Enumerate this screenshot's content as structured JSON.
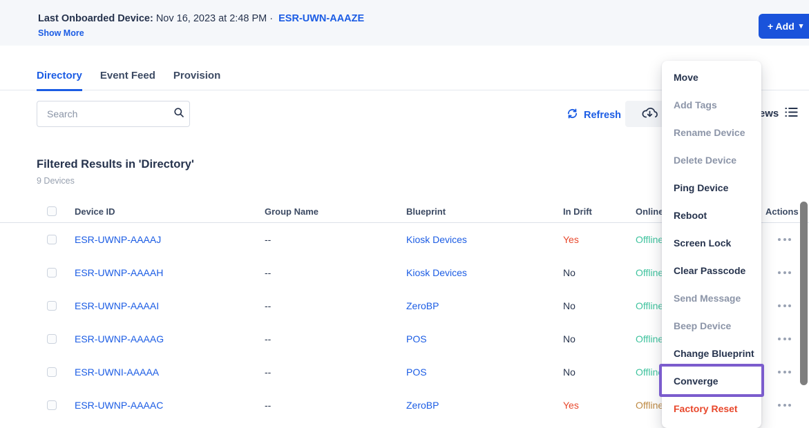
{
  "colors": {
    "accent": "#1B5CE4",
    "button_blue": "#1A53DB",
    "text": "#26334D",
    "muted": "#8C95A8",
    "danger": "#E8472B",
    "online_teal": "#3FC39E",
    "online_amber": "#BE8A44",
    "highlight_purple": "#7B5CCD",
    "topbar_bg": "#F5F7FA"
  },
  "topbar": {
    "last_onboarded_label": "Last Onboarded Device:",
    "last_onboarded_datetime": "Nov 16, 2023 at 2:48 PM ·",
    "device_link": "ESR-UWN-AAAZE",
    "show_more_label": "Show More",
    "add_button_label": "+ Add"
  },
  "tabs": [
    {
      "label": "Directory",
      "active": true
    },
    {
      "label": "Event Feed",
      "active": false
    },
    {
      "label": "Provision",
      "active": false
    }
  ],
  "toolbar": {
    "search_placeholder": "Search",
    "refresh_label": "Refresh",
    "views_label": "Views"
  },
  "results": {
    "title": "Filtered Results in 'Directory'",
    "count": "9 Devices"
  },
  "table": {
    "columns": [
      "Device ID",
      "Group Name",
      "Blueprint",
      "In Drift",
      "Online",
      "Actions"
    ],
    "rows": [
      {
        "device_id": "ESR-UWNP-AAAAJ",
        "group_name": "--",
        "blueprint": "Kiosk Devices",
        "in_drift": "Yes",
        "in_drift_color": "danger",
        "online": "Offline",
        "online_color": "teal"
      },
      {
        "device_id": "ESR-UWNP-AAAAH",
        "group_name": "--",
        "blueprint": "Kiosk Devices",
        "in_drift": "No",
        "in_drift_color": "default",
        "online": "Offline",
        "online_color": "teal"
      },
      {
        "device_id": "ESR-UWNP-AAAAI",
        "group_name": "--",
        "blueprint": "ZeroBP",
        "in_drift": "No",
        "in_drift_color": "default",
        "online": "Offline",
        "online_color": "teal"
      },
      {
        "device_id": "ESR-UWNP-AAAAG",
        "group_name": "--",
        "blueprint": "POS",
        "in_drift": "No",
        "in_drift_color": "default",
        "online": "Offline",
        "online_color": "teal"
      },
      {
        "device_id": "ESR-UWNI-AAAAA",
        "group_name": "--",
        "blueprint": "POS",
        "in_drift": "No",
        "in_drift_color": "default",
        "online": "Offline",
        "online_color": "teal"
      },
      {
        "device_id": "ESR-UWNP-AAAAC",
        "group_name": "--",
        "blueprint": "ZeroBP",
        "in_drift": "Yes",
        "in_drift_color": "danger",
        "online": "Offline",
        "online_color": "amber"
      }
    ]
  },
  "context_menu": {
    "items": [
      {
        "label": "Move",
        "state": "enabled",
        "highlighted": false
      },
      {
        "label": "Add Tags",
        "state": "disabled",
        "highlighted": false
      },
      {
        "label": "Rename Device",
        "state": "disabled",
        "highlighted": false
      },
      {
        "label": "Delete Device",
        "state": "disabled",
        "highlighted": false
      },
      {
        "label": "Ping Device",
        "state": "enabled",
        "highlighted": false
      },
      {
        "label": "Reboot",
        "state": "enabled",
        "highlighted": false
      },
      {
        "label": "Screen Lock",
        "state": "enabled",
        "highlighted": false
      },
      {
        "label": "Clear Passcode",
        "state": "enabled",
        "highlighted": false
      },
      {
        "label": "Send Message",
        "state": "disabled",
        "highlighted": false
      },
      {
        "label": "Beep Device",
        "state": "disabled",
        "highlighted": false
      },
      {
        "label": "Change Blueprint",
        "state": "enabled",
        "highlighted": false
      },
      {
        "label": "Converge",
        "state": "enabled",
        "highlighted": true
      },
      {
        "label": "Factory Reset",
        "state": "danger",
        "highlighted": false
      }
    ]
  }
}
